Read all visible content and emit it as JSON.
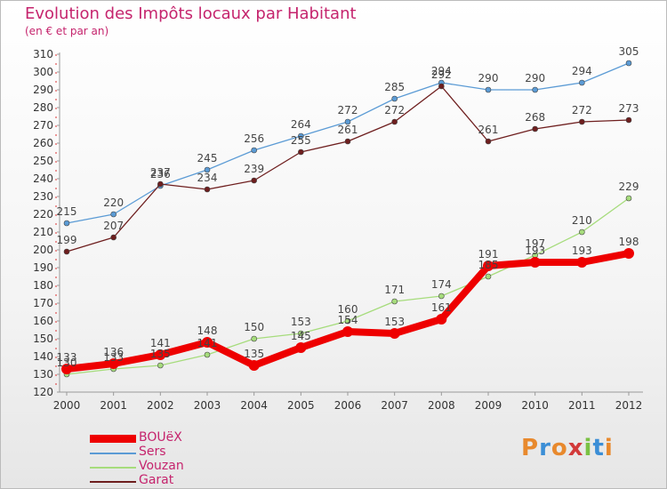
{
  "header": {
    "title": "Evolution des Impôts locaux par Habitant",
    "subtitle": "(en € et par an)"
  },
  "logo": {
    "text": "Proxiti",
    "colors": [
      "#e8892d",
      "#3b8ed6",
      "#e8892d",
      "#d23a3a",
      "#7ac143",
      "#3b8ed6",
      "#e8892d"
    ]
  },
  "chart_data": {
    "type": "line",
    "x": [
      "2000",
      "2001",
      "2002",
      "2003",
      "2004",
      "2005",
      "2006",
      "2007",
      "2008",
      "2009",
      "2010",
      "2011",
      "2012"
    ],
    "ylim": [
      120,
      310
    ],
    "yticks": [
      120,
      130,
      140,
      150,
      160,
      170,
      180,
      190,
      200,
      210,
      220,
      230,
      240,
      250,
      260,
      270,
      280,
      290,
      300,
      310
    ],
    "grid": false,
    "legend_position": "bottom-left",
    "series": [
      {
        "name": "BOUëX",
        "color": "#ee0000",
        "values": [
          133,
          136,
          141,
          148,
          135,
          145,
          154,
          153,
          161,
          191,
          193,
          193,
          198
        ]
      },
      {
        "name": "Sers",
        "color": "#5b9bd5",
        "values": [
          215,
          220,
          236,
          245,
          256,
          264,
          272,
          285,
          294,
          290,
          290,
          294,
          305
        ]
      },
      {
        "name": "Vouzan",
        "color": "#a6dc7c",
        "values": [
          130,
          133,
          135,
          141,
          150,
          153,
          160,
          171,
          174,
          185,
          197,
          210,
          229
        ]
      },
      {
        "name": "Garat",
        "color": "#6e1e1e",
        "values": [
          199,
          207,
          237,
          234,
          239,
          255,
          261,
          272,
          292,
          261,
          268,
          272,
          273
        ]
      }
    ]
  }
}
